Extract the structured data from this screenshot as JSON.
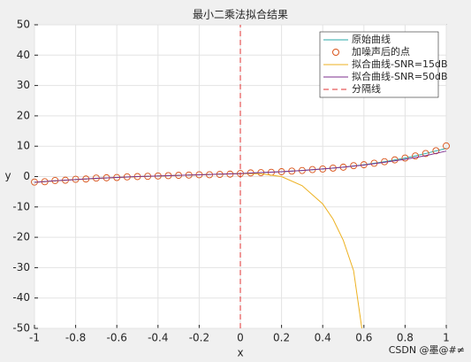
{
  "chart_data": {
    "type": "line",
    "title": "最小二乘法拟合结果",
    "xlabel": "x",
    "ylabel": "y",
    "xlim": [
      -1,
      1
    ],
    "xticks": [
      -1,
      -0.8,
      -0.6,
      -0.4,
      -0.2,
      0,
      0.2,
      0.4,
      0.6,
      0.8,
      1
    ],
    "ylim": [
      -50,
      50
    ],
    "yticks": [
      -50,
      -40,
      -30,
      -20,
      -10,
      0,
      10,
      20,
      30,
      40,
      50
    ],
    "grid": true,
    "legend": "top-right",
    "series": [
      {
        "name": "原始曲线",
        "color": "#2aa9a9",
        "style": "line",
        "x": [
          -1,
          -0.9,
          -0.8,
          -0.7,
          -0.6,
          -0.5,
          -0.4,
          -0.3,
          -0.2,
          -0.1,
          0,
          0.1,
          0.2,
          0.3,
          0.4,
          0.5,
          0.6,
          0.7,
          0.8,
          0.9,
          1
        ],
        "values": [
          -1.9,
          -1.4,
          -1.0,
          -0.6,
          -0.3,
          0.0,
          0.2,
          0.4,
          0.6,
          0.8,
          1.0,
          1.3,
          1.6,
          2.0,
          2.5,
          3.1,
          3.9,
          4.9,
          6.1,
          7.6,
          9.3
        ]
      },
      {
        "name": "加噪声后的点",
        "color": "#d95319",
        "style": "marker",
        "x": [
          -1,
          -0.95,
          -0.9,
          -0.85,
          -0.8,
          -0.75,
          -0.7,
          -0.65,
          -0.6,
          -0.55,
          -0.5,
          -0.45,
          -0.4,
          -0.35,
          -0.3,
          -0.25,
          -0.2,
          -0.15,
          -0.1,
          -0.05,
          0,
          0.05,
          0.1,
          0.15,
          0.2,
          0.25,
          0.3,
          0.35,
          0.4,
          0.45,
          0.5,
          0.55,
          0.6,
          0.65,
          0.7,
          0.75,
          0.8,
          0.85,
          0.9,
          0.95,
          1
        ],
        "values": [
          -1.8,
          -1.7,
          -1.3,
          -1.2,
          -0.9,
          -0.8,
          -0.5,
          -0.4,
          -0.3,
          -0.1,
          0.0,
          0.1,
          0.2,
          0.3,
          0.4,
          0.5,
          0.6,
          0.6,
          0.7,
          0.8,
          1.0,
          1.2,
          1.3,
          1.4,
          1.6,
          1.8,
          2.0,
          2.3,
          2.5,
          2.8,
          3.1,
          3.6,
          3.9,
          4.4,
          4.9,
          5.5,
          6.1,
          6.8,
          7.6,
          8.5,
          10.1
        ]
      },
      {
        "name": "拟合曲线-SNR=15dB",
        "color": "#edb120",
        "style": "line",
        "x": [
          -1,
          -0.8,
          -0.6,
          -0.4,
          -0.2,
          0,
          0.1,
          0.2,
          0.3,
          0.4,
          0.45,
          0.5,
          0.55,
          0.59
        ],
        "values": [
          -1.9,
          -1.0,
          -0.3,
          0.2,
          0.6,
          1.0,
          0.9,
          0.0,
          -3,
          -9,
          -14,
          -21,
          -31,
          -50
        ]
      },
      {
        "name": "拟合曲线-SNR=50dB",
        "color": "#7e2f8e",
        "style": "line",
        "x": [
          -1,
          -0.9,
          -0.8,
          -0.7,
          -0.6,
          -0.5,
          -0.4,
          -0.3,
          -0.2,
          -0.1,
          0,
          0.1,
          0.2,
          0.3,
          0.4,
          0.5,
          0.6,
          0.7,
          0.8,
          0.9,
          1
        ],
        "values": [
          -1.9,
          -1.4,
          -1.0,
          -0.6,
          -0.3,
          0.0,
          0.2,
          0.4,
          0.6,
          0.8,
          1.0,
          1.3,
          1.6,
          2.0,
          2.5,
          3.1,
          3.8,
          4.7,
          5.7,
          6.9,
          8.4
        ]
      },
      {
        "name": "分隔线",
        "color": "#e03030",
        "style": "dashed",
        "x": [
          0,
          0
        ],
        "values": [
          -50,
          50
        ]
      }
    ]
  },
  "watermark": "CSDN @墨@#≠"
}
